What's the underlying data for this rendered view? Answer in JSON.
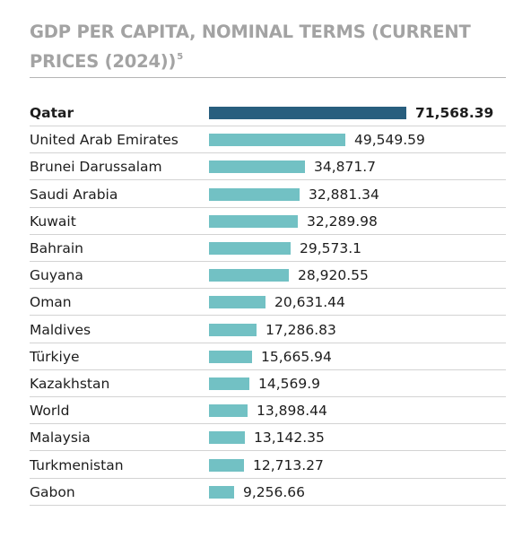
{
  "colors": {
    "bar": "#72c1c4",
    "highlight_bar": "#285e7e",
    "title": "#a3a3a3"
  },
  "chart_data": {
    "type": "bar",
    "orientation": "horizontal",
    "title": "GDP PER CAPITA, NOMINAL TERMS (CURRENT PRICES (2024))",
    "title_note": "5",
    "highlight": "Qatar",
    "categories": [
      "Qatar",
      "United Arab Emirates",
      "Brunei Darussalam",
      "Saudi Arabia",
      "Kuwait",
      "Bahrain",
      "Guyana",
      "Oman",
      "Maldives",
      "Türkiye",
      "Kazakhstan",
      "World",
      "Malaysia",
      "Turkmenistan",
      "Gabon"
    ],
    "values": [
      71568.39,
      49549.59,
      34871.7,
      32881.34,
      32289.98,
      29573.1,
      28920.55,
      20631.44,
      17286.83,
      15665.94,
      14569.9,
      13898.44,
      13142.35,
      12713.27,
      9256.66
    ],
    "value_labels": [
      "71,568.39",
      "49,549.59",
      "34,871.7",
      "32,881.34",
      "32,289.98",
      "29,573.1",
      "28,920.55",
      "20,631.44",
      "17,286.83",
      "15,665.94",
      "14,569.9",
      "13,898.44",
      "13,142.35",
      "12,713.27",
      "9,256.66"
    ],
    "xlim": [
      0,
      71568.39
    ]
  }
}
